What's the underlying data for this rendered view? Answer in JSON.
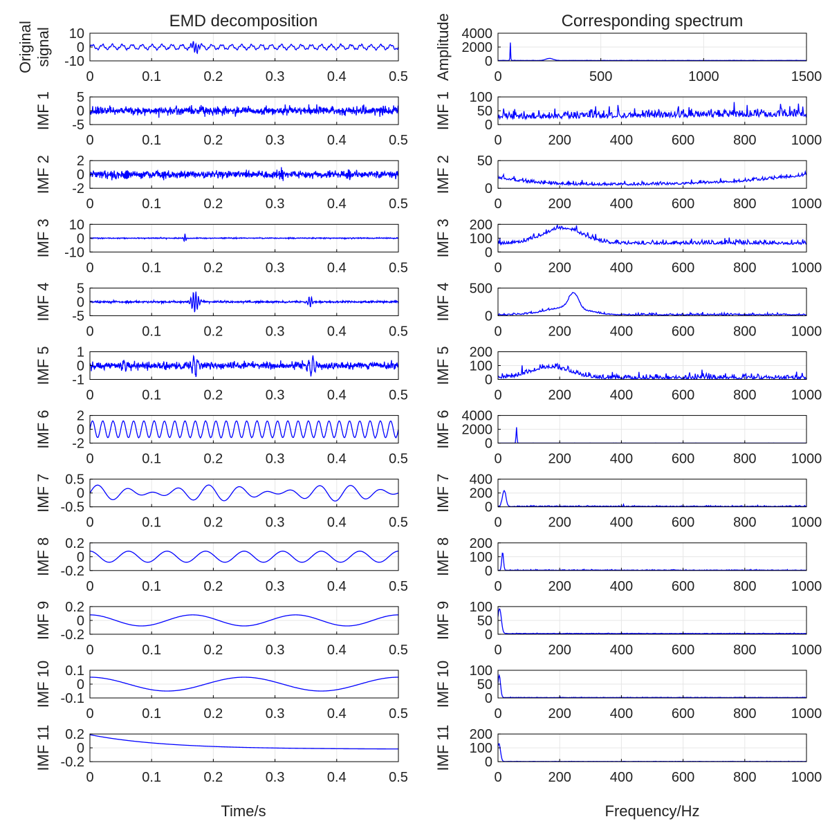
{
  "figure": {
    "left_title": "EMD decomposition",
    "right_title": "Corresponding spectrum",
    "left_xlabel": "Time/s",
    "right_xlabel": "Frequency/Hz"
  },
  "style": {
    "line_color": "#0000ff",
    "axis_color": "#000000",
    "grid_color": "#e6e6e6"
  },
  "chart_data": [
    {
      "panel": "left",
      "row": 0,
      "type": "line",
      "ylabel": [
        "Original",
        "signal"
      ],
      "xlim": [
        0,
        0.5
      ],
      "ylim": [
        -10,
        10
      ],
      "xticks": [
        0,
        0.1,
        0.2,
        0.3,
        0.4,
        0.5
      ],
      "yticks": [
        -10,
        0,
        10
      ],
      "signal": {
        "kind": "sines",
        "comps": [
          {
            "a": 1.6,
            "f": 62
          },
          {
            "a": 0.5,
            "f": 200
          }
        ],
        "noise": 0.25,
        "bursts": [
          {
            "t": 0.17,
            "w": 0.008,
            "a": 3.5,
            "f": 240
          }
        ]
      }
    },
    {
      "panel": "left",
      "row": 1,
      "type": "line",
      "ylabel": [
        "IMF 1"
      ],
      "xlim": [
        0,
        0.5
      ],
      "ylim": [
        -5,
        5
      ],
      "xticks": [
        0,
        0.1,
        0.2,
        0.3,
        0.4,
        0.5
      ],
      "yticks": [
        -5,
        0,
        5
      ],
      "signal": {
        "kind": "sines",
        "comps": [],
        "noise": 1.2,
        "bursts": []
      }
    },
    {
      "panel": "left",
      "row": 2,
      "type": "line",
      "ylabel": [
        "IMF 2"
      ],
      "xlim": [
        0,
        0.5
      ],
      "ylim": [
        -2,
        2
      ],
      "xticks": [
        0,
        0.1,
        0.2,
        0.3,
        0.4,
        0.5
      ],
      "yticks": [
        -2,
        0,
        2
      ],
      "signal": {
        "kind": "sines",
        "comps": [],
        "noise": 0.45,
        "bursts": [
          {
            "t": 0.06,
            "w": 0.004,
            "a": 0.6,
            "f": 600
          },
          {
            "t": 0.12,
            "w": 0.004,
            "a": 0.5,
            "f": 600
          },
          {
            "t": 0.25,
            "w": 0.004,
            "a": 0.5,
            "f": 600
          },
          {
            "t": 0.31,
            "w": 0.004,
            "a": 0.6,
            "f": 600
          },
          {
            "t": 0.42,
            "w": 0.004,
            "a": 0.5,
            "f": 600
          }
        ]
      }
    },
    {
      "panel": "left",
      "row": 3,
      "type": "line",
      "ylabel": [
        "IMF 3"
      ],
      "xlim": [
        0,
        0.5
      ],
      "ylim": [
        -10,
        10
      ],
      "xticks": [
        0,
        0.1,
        0.2,
        0.3,
        0.4,
        0.5
      ],
      "yticks": [
        -10,
        0,
        10
      ],
      "signal": {
        "kind": "sines",
        "comps": [],
        "noise": 0.3,
        "bursts": [
          {
            "t": 0.154,
            "w": 0.002,
            "a": 3.5,
            "f": 300
          }
        ]
      }
    },
    {
      "panel": "left",
      "row": 4,
      "type": "line",
      "ylabel": [
        "IMF 4"
      ],
      "xlim": [
        0,
        0.5
      ],
      "ylim": [
        -5,
        5
      ],
      "xticks": [
        0,
        0.1,
        0.2,
        0.3,
        0.4,
        0.5
      ],
      "yticks": [
        -5,
        0,
        5
      ],
      "signal": {
        "kind": "sines",
        "comps": [],
        "noise": 0.3,
        "bursts": [
          {
            "t": 0.17,
            "w": 0.007,
            "a": 3.8,
            "f": 240
          },
          {
            "t": 0.357,
            "w": 0.004,
            "a": 2.0,
            "f": 240
          }
        ]
      }
    },
    {
      "panel": "left",
      "row": 5,
      "type": "line",
      "ylabel": [
        "IMF 5"
      ],
      "xlim": [
        0,
        0.5
      ],
      "ylim": [
        -1,
        1
      ],
      "xticks": [
        0,
        0.1,
        0.2,
        0.3,
        0.4,
        0.5
      ],
      "yticks": [
        -1,
        0,
        1
      ],
      "signal": {
        "kind": "sines",
        "comps": [],
        "noise": 0.22,
        "bursts": [
          {
            "t": 0.17,
            "w": 0.006,
            "a": 0.7,
            "f": 150
          },
          {
            "t": 0.36,
            "w": 0.006,
            "a": 0.8,
            "f": 150
          },
          {
            "t": 0.055,
            "w": 0.005,
            "a": 0.35,
            "f": 150
          }
        ]
      }
    },
    {
      "panel": "left",
      "row": 6,
      "type": "line",
      "ylabel": [
        "IMF 6"
      ],
      "xlim": [
        0,
        0.5
      ],
      "ylim": [
        -2,
        2
      ],
      "xticks": [
        0,
        0.1,
        0.2,
        0.3,
        0.4,
        0.5
      ],
      "yticks": [
        -2,
        0,
        2
      ],
      "signal": {
        "kind": "sines",
        "comps": [
          {
            "a": 1.2,
            "f": 60
          }
        ],
        "noise": 0.03,
        "bursts": []
      }
    },
    {
      "panel": "left",
      "row": 7,
      "type": "line",
      "ylabel": [
        "IMF 7"
      ],
      "xlim": [
        0,
        0.5
      ],
      "ylim": [
        -0.5,
        0.5
      ],
      "xticks": [
        0,
        0.1,
        0.2,
        0.3,
        0.4,
        0.5
      ],
      "yticks": [
        -0.5,
        0,
        0.5
      ],
      "signal": {
        "kind": "sines",
        "comps": [
          {
            "a": 0.16,
            "f": 22
          },
          {
            "a": 0.13,
            "f": 17
          }
        ],
        "noise": 0.0,
        "bursts": []
      }
    },
    {
      "panel": "left",
      "row": 8,
      "type": "line",
      "ylabel": [
        "IMF 8"
      ],
      "xlim": [
        0,
        0.5
      ],
      "ylim": [
        -0.2,
        0.2
      ],
      "xticks": [
        0,
        0.1,
        0.2,
        0.3,
        0.4,
        0.5
      ],
      "yticks": [
        -0.2,
        0,
        0.2
      ],
      "signal": {
        "kind": "sines",
        "comps": [
          {
            "a": 0.08,
            "f": 16,
            "p": 1.57
          }
        ],
        "noise": 0.0,
        "bursts": []
      }
    },
    {
      "panel": "left",
      "row": 9,
      "type": "line",
      "ylabel": [
        "IMF 9"
      ],
      "xlim": [
        0,
        0.5
      ],
      "ylim": [
        -0.2,
        0.2
      ],
      "xticks": [
        0,
        0.1,
        0.2,
        0.3,
        0.4,
        0.5
      ],
      "yticks": [
        -0.2,
        0,
        0.2
      ],
      "signal": {
        "kind": "sines",
        "comps": [
          {
            "a": 0.08,
            "f": 6,
            "p": 1.57
          }
        ],
        "noise": 0.0,
        "bursts": []
      }
    },
    {
      "panel": "left",
      "row": 10,
      "type": "line",
      "ylabel": [
        "IMF 10"
      ],
      "xlim": [
        0,
        0.5
      ],
      "ylim": [
        -0.1,
        0.1
      ],
      "xticks": [
        0,
        0.1,
        0.2,
        0.3,
        0.4,
        0.5
      ],
      "yticks": [
        -0.1,
        0,
        0.1
      ],
      "signal": {
        "kind": "sines",
        "comps": [
          {
            "a": 0.05,
            "f": 4,
            "p": 1.57
          }
        ],
        "noise": 0.0,
        "bursts": []
      }
    },
    {
      "panel": "left",
      "row": 11,
      "type": "line",
      "ylabel": [
        "IMF 11"
      ],
      "xlim": [
        0,
        0.5
      ],
      "ylim": [
        -0.2,
        0.2
      ],
      "xticks": [
        0,
        0.1,
        0.2,
        0.3,
        0.4,
        0.5
      ],
      "yticks": [
        -0.2,
        0,
        0.2
      ],
      "signal": {
        "kind": "trend",
        "start": 0.19,
        "end": -0.02,
        "tau": 0.12
      }
    },
    {
      "panel": "right",
      "row": 0,
      "type": "line",
      "ylabel": [
        "Amplitude"
      ],
      "xlim": [
        0,
        1500
      ],
      "ylim": [
        0,
        4000
      ],
      "xticks": [
        0,
        500,
        1000,
        1500
      ],
      "yticks": [
        0,
        2000,
        4000
      ],
      "spectrum": {
        "peaks": [
          {
            "f": 60,
            "a": 2600,
            "w": 2
          },
          {
            "f": 250,
            "a": 300,
            "w": 25
          }
        ],
        "floor": 50,
        "noise": 20,
        "hump": null
      }
    },
    {
      "panel": "right",
      "row": 1,
      "type": "line",
      "ylabel": [
        "IMF 1"
      ],
      "xlim": [
        0,
        1000
      ],
      "ylim": [
        0,
        100
      ],
      "xticks": [
        0,
        200,
        400,
        600,
        800,
        1000
      ],
      "yticks": [
        0,
        50,
        100
      ],
      "spectrum": {
        "peaks": [],
        "floor": 20,
        "noise": 20,
        "hump": null,
        "ramp": 10
      }
    },
    {
      "panel": "right",
      "row": 2,
      "type": "line",
      "ylabel": [
        "IMF 2"
      ],
      "xlim": [
        0,
        1000
      ],
      "ylim": [
        0,
        50
      ],
      "xticks": [
        0,
        200,
        400,
        600,
        800,
        1000
      ],
      "yticks": [
        0,
        50
      ],
      "spectrum": {
        "peaks": [],
        "floor": 3,
        "noise": 4,
        "hump": null,
        "edge": [
          {
            "f": 0,
            "a": 15,
            "w": 120
          },
          {
            "f": 1000,
            "a": 20,
            "w": 250
          }
        ]
      }
    },
    {
      "panel": "right",
      "row": 3,
      "type": "line",
      "ylabel": [
        "IMF 3"
      ],
      "xlim": [
        0,
        1000
      ],
      "ylim": [
        0,
        200
      ],
      "xticks": [
        0,
        200,
        400,
        600,
        800,
        1000
      ],
      "yticks": [
        0,
        100,
        200
      ],
      "spectrum": {
        "peaks": [],
        "floor": 55,
        "noise": 20,
        "hump": {
          "f": 210,
          "a": 110,
          "w": 90
        }
      }
    },
    {
      "panel": "right",
      "row": 4,
      "type": "line",
      "ylabel": [
        "IMF 4"
      ],
      "xlim": [
        0,
        1000
      ],
      "ylim": [
        0,
        500
      ],
      "xticks": [
        0,
        200,
        400,
        600,
        800,
        1000
      ],
      "yticks": [
        0,
        500
      ],
      "spectrum": {
        "peaks": [
          {
            "f": 245,
            "a": 280,
            "w": 22
          }
        ],
        "floor": 10,
        "noise": 20,
        "hump": {
          "f": 220,
          "a": 130,
          "w": 90
        }
      }
    },
    {
      "panel": "right",
      "row": 5,
      "type": "line",
      "ylabel": [
        "IMF 5"
      ],
      "xlim": [
        0,
        1000
      ],
      "ylim": [
        0,
        200
      ],
      "xticks": [
        0,
        200,
        400,
        600,
        800,
        1000
      ],
      "yticks": [
        0,
        100,
        200
      ],
      "spectrum": {
        "peaks": [],
        "floor": 2,
        "noise": 25,
        "hump": {
          "f": 170,
          "a": 80,
          "w": 90
        }
      }
    },
    {
      "panel": "right",
      "row": 6,
      "type": "line",
      "ylabel": [
        "IMF 6"
      ],
      "xlim": [
        0,
        1000
      ],
      "ylim": [
        0,
        4000
      ],
      "xticks": [
        0,
        200,
        400,
        600,
        800,
        1000
      ],
      "yticks": [
        0,
        2000,
        4000
      ],
      "spectrum": {
        "peaks": [
          {
            "f": 60,
            "a": 2300,
            "w": 2
          }
        ],
        "floor": 5,
        "noise": 5,
        "hump": null
      }
    },
    {
      "panel": "right",
      "row": 7,
      "type": "line",
      "ylabel": [
        "IMF 7"
      ],
      "xlim": [
        0,
        1000
      ],
      "ylim": [
        0,
        400
      ],
      "xticks": [
        0,
        200,
        400,
        600,
        800,
        1000
      ],
      "yticks": [
        0,
        200,
        400
      ],
      "spectrum": {
        "peaks": [
          {
            "f": 20,
            "a": 230,
            "w": 8
          }
        ],
        "floor": 2,
        "noise": 10,
        "hump": null
      }
    },
    {
      "panel": "right",
      "row": 8,
      "type": "line",
      "ylabel": [
        "IMF 8"
      ],
      "xlim": [
        0,
        1000
      ],
      "ylim": [
        0,
        200
      ],
      "xticks": [
        0,
        200,
        400,
        600,
        800,
        1000
      ],
      "yticks": [
        0,
        100,
        200
      ],
      "spectrum": {
        "peaks": [
          {
            "f": 15,
            "a": 130,
            "w": 4
          }
        ],
        "floor": 1,
        "noise": 3,
        "hump": null
      }
    },
    {
      "panel": "right",
      "row": 9,
      "type": "line",
      "ylabel": [
        "IMF 9"
      ],
      "xlim": [
        0,
        1000
      ],
      "ylim": [
        0,
        100
      ],
      "xticks": [
        0,
        200,
        400,
        600,
        800,
        1000
      ],
      "yticks": [
        0,
        50,
        100
      ],
      "spectrum": {
        "peaks": [
          {
            "f": 5,
            "a": 90,
            "w": 8
          }
        ],
        "floor": 2,
        "noise": 1,
        "hump": null
      }
    },
    {
      "panel": "right",
      "row": 10,
      "type": "line",
      "ylabel": [
        "IMF 10"
      ],
      "xlim": [
        0,
        1000
      ],
      "ylim": [
        0,
        100
      ],
      "xticks": [
        0,
        200,
        400,
        600,
        800,
        1000
      ],
      "yticks": [
        0,
        50,
        100
      ],
      "spectrum": {
        "peaks": [
          {
            "f": 4,
            "a": 80,
            "w": 6
          }
        ],
        "floor": 1,
        "noise": 1,
        "hump": null
      }
    },
    {
      "panel": "right",
      "row": 11,
      "type": "line",
      "ylabel": [
        "IMF 11"
      ],
      "xlim": [
        0,
        1000
      ],
      "ylim": [
        0,
        200
      ],
      "xticks": [
        0,
        200,
        400,
        600,
        800,
        1000
      ],
      "yticks": [
        0,
        100,
        200
      ],
      "spectrum": {
        "peaks": [
          {
            "f": 3,
            "a": 130,
            "w": 7
          }
        ],
        "floor": 1,
        "noise": 1,
        "hump": null
      }
    }
  ]
}
